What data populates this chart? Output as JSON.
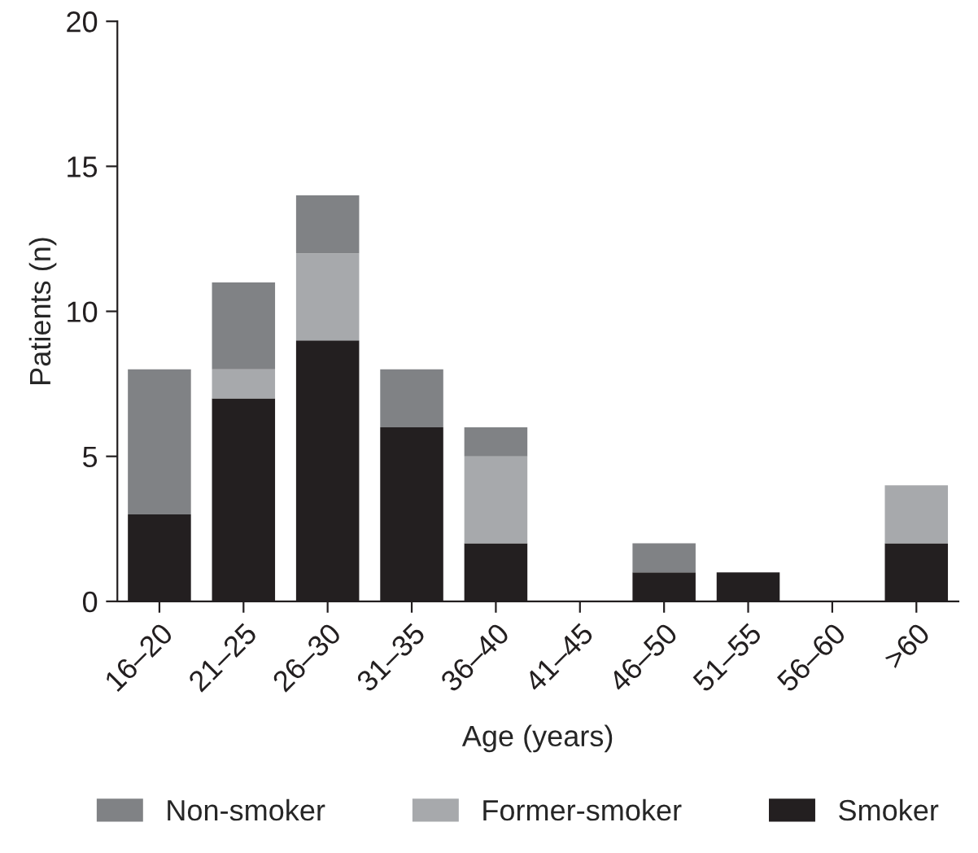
{
  "chart_data": {
    "type": "bar",
    "stacked": true,
    "xlabel": "Age (years)",
    "ylabel": "Patients (n)",
    "categories": [
      "16–20",
      "21–25",
      "26–30",
      "31–35",
      "36–40",
      "41–45",
      "46–50",
      "51–55",
      "56–60",
      ">60"
    ],
    "series": [
      {
        "name": "Smoker",
        "color": "#231f20",
        "values": [
          3,
          7,
          9,
          6,
          2,
          0,
          1,
          1,
          0,
          2
        ]
      },
      {
        "name": "Former-smoker",
        "color": "#a7a9ac",
        "values": [
          0,
          1,
          3,
          0,
          3,
          0,
          0,
          0,
          0,
          2
        ]
      },
      {
        "name": "Non-smoker",
        "color": "#808285",
        "values": [
          5,
          3,
          2,
          2,
          1,
          0,
          1,
          0,
          0,
          0
        ]
      }
    ],
    "ylim": [
      0,
      20
    ],
    "yticks": [
      0,
      5,
      10,
      15,
      20
    ],
    "grid": false,
    "legend": "bottom"
  }
}
